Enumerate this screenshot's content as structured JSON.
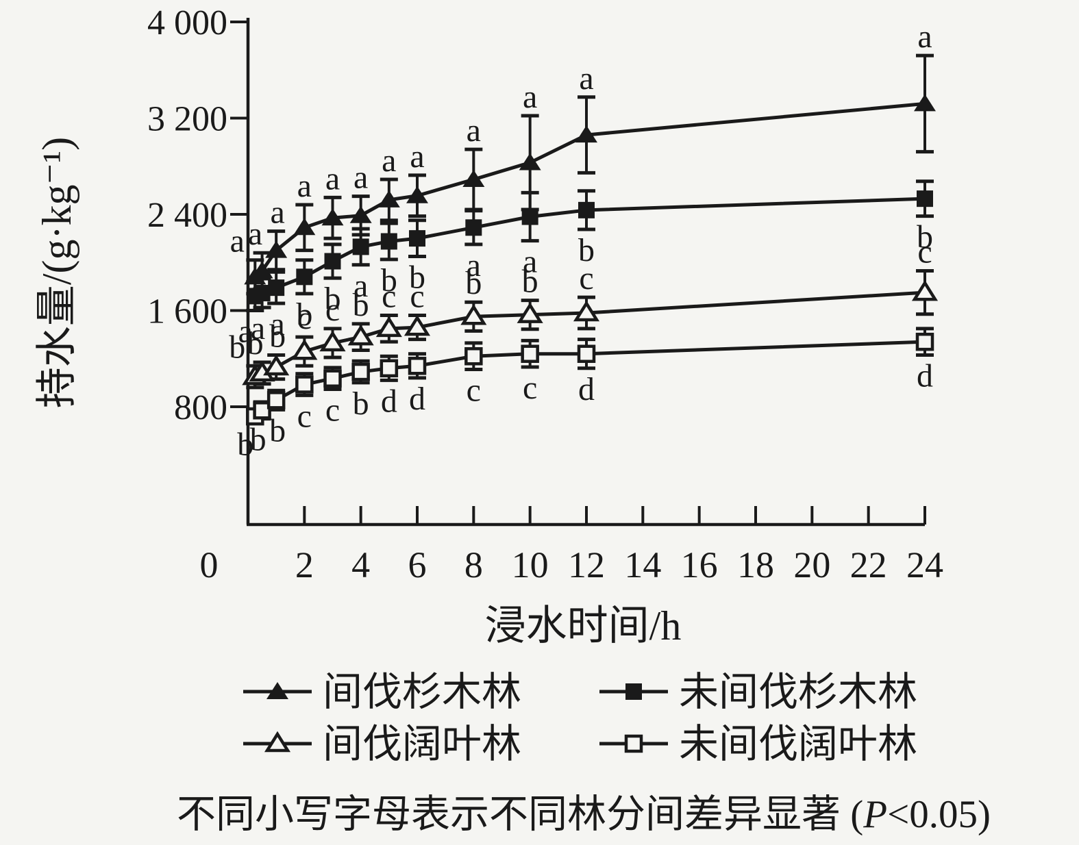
{
  "page": {
    "background": "#f5f5f2",
    "ink": "#1a1a1a"
  },
  "chart_data": {
    "type": "line",
    "title": "",
    "xlabel": "浸水时间/h",
    "ylabel": "持水量/(g·kg⁻¹)",
    "grid": false,
    "legend_position": "bottom",
    "x_hours": [
      0.25,
      0.5,
      1,
      2,
      3,
      4,
      5,
      6,
      8,
      10,
      12,
      24
    ],
    "x_axis": {
      "range": [
        0,
        24
      ],
      "ticks": [
        2,
        4,
        6,
        8,
        10,
        12,
        14,
        16,
        18,
        20,
        22,
        24
      ],
      "tick_labels": [
        "2",
        "4",
        "6",
        "8",
        "10",
        "12",
        "14",
        "16",
        "18",
        "20",
        "22",
        "24"
      ],
      "origin_label": "0"
    },
    "y_axis": {
      "range": [
        0,
        4000
      ],
      "ticks": [
        800,
        1600,
        2400,
        3200,
        4000
      ],
      "tick_labels": [
        "800",
        "1 600",
        "2 400",
        "3 200",
        "4 000"
      ]
    },
    "series": [
      {
        "name": "间伐杉木林",
        "marker": "filled-triangle",
        "letter_side": "above",
        "values": [
          1880,
          1930,
          2100,
          2290,
          2370,
          2390,
          2520,
          2555,
          2690,
          2830,
          3060,
          3320
        ],
        "errors": [
          140,
          150,
          160,
          190,
          170,
          160,
          170,
          170,
          250,
          390,
          315,
          400
        ],
        "letters": [
          "a",
          "a",
          "a",
          "a",
          "a",
          "a",
          "a",
          "a",
          "a",
          "a",
          "a",
          "a"
        ]
      },
      {
        "name": "未间伐杉木林",
        "marker": "filled-square",
        "letter_side": "below",
        "values": [
          1720,
          1745,
          1790,
          1880,
          2010,
          2130,
          2175,
          2200,
          2290,
          2380,
          2435,
          2530
        ],
        "errors": [
          120,
          120,
          130,
          140,
          140,
          150,
          150,
          150,
          140,
          200,
          160,
          145
        ],
        "letters": [
          "a",
          "a",
          "a",
          "b",
          "b",
          "a",
          "b",
          "b",
          "a",
          "a",
          "b",
          "b"
        ]
      },
      {
        "name": "间伐阔叶林",
        "marker": "open-triangle",
        "letter_side": "above",
        "values": [
          1050,
          1080,
          1130,
          1260,
          1330,
          1380,
          1450,
          1460,
          1550,
          1565,
          1580,
          1750
        ],
        "errors": [
          90,
          90,
          100,
          120,
          120,
          110,
          110,
          100,
          120,
          120,
          130,
          180
        ],
        "letters": [
          "b",
          "b",
          "b",
          "c",
          "c",
          "b",
          "c",
          "c",
          "b",
          "b",
          "c",
          "c"
        ]
      },
      {
        "name": "未间伐阔叶林",
        "marker": "open-square",
        "letter_side": "below",
        "values": [
          720,
          770,
          855,
          985,
          1035,
          1090,
          1120,
          1140,
          1220,
          1240,
          1240,
          1340
        ],
        "errors": [
          60,
          70,
          80,
          90,
          90,
          90,
          100,
          100,
          110,
          110,
          120,
          110
        ],
        "letters": [
          "b",
          "b",
          "b",
          "c",
          "c",
          "b",
          "d",
          "d",
          "c",
          "c",
          "d",
          "d"
        ]
      }
    ]
  },
  "legend": {
    "items": [
      {
        "label": "间伐杉木林",
        "marker": "filled-triangle"
      },
      {
        "label": "未间伐杉木林",
        "marker": "filled-square"
      },
      {
        "label": "间伐阔叶林",
        "marker": "open-triangle"
      },
      {
        "label": "未间伐阔叶林",
        "marker": "open-square"
      }
    ]
  },
  "caption": {
    "before_p": "不同小写字母表示不同林分间差异显著 (",
    "p": "P",
    "after_p": "<0.05)"
  }
}
